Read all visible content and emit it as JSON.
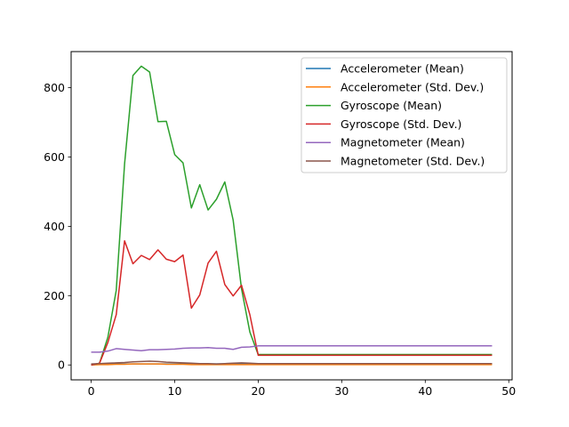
{
  "chart_data": {
    "type": "line",
    "title": "",
    "xlabel": "",
    "ylabel": "",
    "xlim": [
      -2.4,
      50.4
    ],
    "ylim": [
      -43,
      904
    ],
    "x_ticks": [
      0,
      10,
      20,
      30,
      40,
      50
    ],
    "y_ticks": [
      0,
      200,
      400,
      600,
      800
    ],
    "grid": false,
    "legend_position": "top-right",
    "x": [
      0,
      1,
      2,
      3,
      4,
      5,
      6,
      7,
      8,
      9,
      10,
      11,
      12,
      13,
      14,
      15,
      16,
      17,
      18,
      19,
      20,
      21,
      22,
      23,
      24,
      25,
      26,
      27,
      28,
      29,
      30,
      31,
      32,
      33,
      34,
      35,
      36,
      37,
      38,
      39,
      40,
      41,
      42,
      43,
      44,
      45,
      46,
      47,
      48
    ],
    "series": [
      {
        "name": "Accelerometer (Mean)",
        "color": "#1f77b4",
        "values": [
          2,
          2,
          3,
          3,
          3,
          3,
          3,
          3,
          3,
          3,
          3,
          3,
          3,
          3,
          3,
          3,
          3,
          3,
          3,
          3,
          3,
          3,
          3,
          3,
          3,
          3,
          3,
          3,
          3,
          3,
          3,
          3,
          3,
          3,
          3,
          3,
          3,
          3,
          3,
          3,
          3,
          3,
          3,
          3,
          3,
          3,
          3,
          3,
          3
        ]
      },
      {
        "name": "Accelerometer (Std. Dev.)",
        "color": "#ff7f0e",
        "values": [
          0,
          1,
          1,
          2,
          2,
          3,
          3,
          3,
          3,
          2,
          2,
          2,
          1,
          1,
          1,
          1,
          1,
          1,
          1,
          1,
          1,
          1,
          1,
          1,
          1,
          1,
          1,
          1,
          1,
          1,
          1,
          1,
          1,
          1,
          1,
          1,
          1,
          1,
          1,
          1,
          1,
          1,
          1,
          1,
          1,
          1,
          1,
          1,
          1
        ]
      },
      {
        "name": "Gyroscope (Mean)",
        "color": "#2ca02c",
        "values": [
          0,
          5,
          80,
          215,
          580,
          835,
          862,
          845,
          702,
          703,
          607,
          583,
          453,
          520,
          447,
          478,
          528,
          418,
          220,
          95,
          30,
          30,
          30,
          30,
          30,
          30,
          30,
          30,
          30,
          30,
          30,
          30,
          30,
          30,
          30,
          30,
          30,
          30,
          30,
          30,
          30,
          30,
          30,
          30,
          30,
          30,
          30,
          30,
          30
        ]
      },
      {
        "name": "Gyroscope (Std. Dev.)",
        "color": "#d62728",
        "values": [
          0,
          5,
          65,
          145,
          358,
          292,
          316,
          304,
          332,
          305,
          298,
          317,
          164,
          202,
          294,
          328,
          232,
          199,
          230,
          145,
          28,
          28,
          28,
          28,
          28,
          28,
          28,
          28,
          28,
          28,
          28,
          28,
          28,
          28,
          28,
          28,
          28,
          28,
          28,
          28,
          28,
          28,
          28,
          28,
          28,
          28,
          28,
          28,
          28
        ]
      },
      {
        "name": "Magnetometer (Mean)",
        "color": "#9467bd",
        "values": [
          37,
          37,
          40,
          47,
          45,
          43,
          41,
          44,
          44,
          45,
          46,
          48,
          49,
          49,
          50,
          48,
          48,
          45,
          51,
          52,
          55,
          55,
          55,
          55,
          55,
          55,
          55,
          55,
          55,
          55,
          55,
          55,
          55,
          55,
          55,
          55,
          55,
          55,
          55,
          55,
          55,
          55,
          55,
          55,
          55,
          55,
          55,
          55,
          55
        ]
      },
      {
        "name": "Magnetometer (Std. Dev.)",
        "color": "#8c564b",
        "values": [
          3,
          4,
          5,
          6,
          7,
          9,
          10,
          11,
          10,
          8,
          7,
          6,
          5,
          4,
          4,
          3,
          4,
          5,
          6,
          5,
          4,
          4,
          4,
          4,
          4,
          4,
          4,
          4,
          4,
          4,
          4,
          4,
          4,
          4,
          4,
          4,
          4,
          4,
          4,
          4,
          4,
          4,
          4,
          4,
          4,
          4,
          4,
          4,
          4
        ]
      }
    ]
  }
}
